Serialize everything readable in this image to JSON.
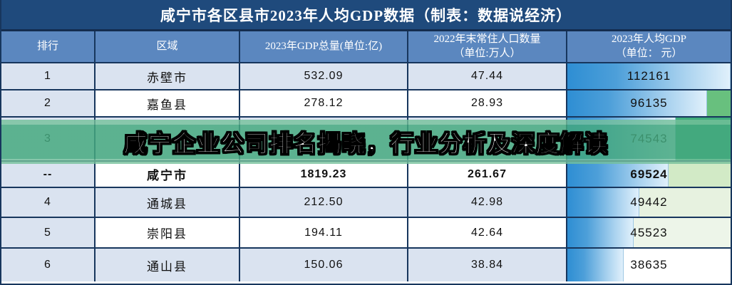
{
  "header": {
    "title": "咸宁市各区县市2023年人均GDP数据（制表：数据说经济）"
  },
  "ui": {
    "headers": [
      "排行",
      "区域",
      "2023年GDP总量(单位:亿)",
      "2022年末常住人口数量\n（单位:万人）",
      "2023年人均GDP\n（单位： 元）"
    ]
  },
  "overlay": {
    "text": "咸宁企业公司排名揭晓，行业分析及深度解读",
    "band_color": "#44a87e"
  },
  "colors": {
    "title_bar_bg": "#1f4a7c",
    "header_row_bg": "#5b87bf",
    "grid_border": "#17365d",
    "shaded_cell_bg": "#dae3f0",
    "bar_blue_start": "#2e8ed3",
    "bar_blue_end": "#e0f0fb",
    "banner_green": "#44a87e"
  },
  "chart_data": {
    "type": "table",
    "title": "咸宁市各区县市2023年人均GDP数据（制表：数据说经济）",
    "columns": [
      "排行",
      "区域",
      "2023年GDP总量(单位:亿)",
      "2022年末常住人口数量（单位:万人）",
      "2023年人均GDP（单位： 元）"
    ],
    "bar_max": 112161,
    "rows": [
      {
        "rank": "1",
        "region": "赤壁市",
        "gdp_total": "532.09",
        "population": "47.44",
        "per_capita_gdp": "112161",
        "bold": false,
        "shaded": true,
        "obscured": false,
        "tint": ""
      },
      {
        "rank": "2",
        "region": "嘉鱼县",
        "gdp_total": "278.12",
        "population": "28.93",
        "per_capita_gdp": "96135",
        "bold": false,
        "shaded": false,
        "obscured": false,
        "tint": "#68c07e"
      },
      {
        "rank": "3",
        "region": "",
        "gdp_total": "",
        "population": "",
        "per_capita_gdp": "74543",
        "bold": false,
        "shaded": true,
        "obscured": true,
        "tint": "#3fad7b"
      },
      {
        "rank": "--",
        "region": "咸宁市",
        "gdp_total": "1819.23",
        "population": "261.67",
        "per_capita_gdp": "69524",
        "bold": true,
        "shaded": false,
        "obscured": false,
        "tint": "#d2eac6"
      },
      {
        "rank": "4",
        "region": "通城县",
        "gdp_total": "212.50",
        "population": "42.98",
        "per_capita_gdp": "49442",
        "bold": false,
        "shaded": true,
        "obscured": false,
        "tint": "#e7f2e0"
      },
      {
        "rank": "5",
        "region": "崇阳县",
        "gdp_total": "194.11",
        "population": "42.64",
        "per_capita_gdp": "45523",
        "bold": false,
        "shaded": false,
        "obscured": false,
        "tint": "#edf5e9"
      },
      {
        "rank": "6",
        "region": "通山县",
        "gdp_total": "150.06",
        "population": "38.84",
        "per_capita_gdp": "38635",
        "bold": false,
        "shaded": true,
        "obscured": false,
        "tint": ""
      }
    ]
  }
}
